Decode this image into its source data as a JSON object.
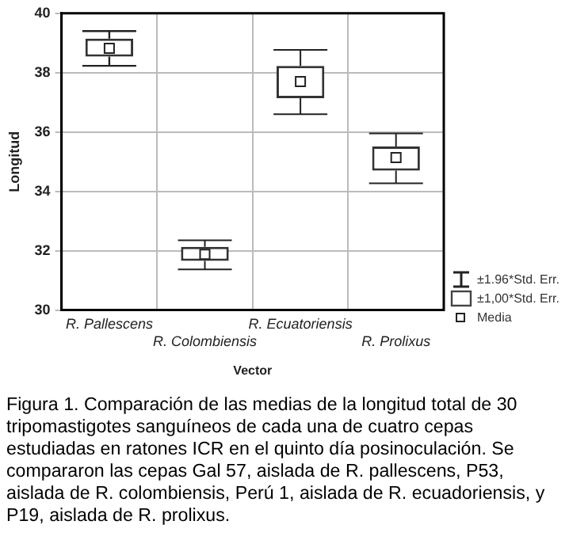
{
  "chart_data": {
    "type": "box",
    "xlabel": "Vector",
    "ylabel": "Longitud",
    "categories": [
      "R. Pallescens",
      "R. Colombiensis",
      "R. Ecuatoriensis",
      "R. Prolixus"
    ],
    "boxes": [
      {
        "low": 38.23,
        "q1": 38.54,
        "median": 38.82,
        "q3": 39.15,
        "high": 39.4
      },
      {
        "low": 31.37,
        "q1": 31.66,
        "median": 31.88,
        "q3": 32.13,
        "high": 32.35
      },
      {
        "low": 36.6,
        "q1": 37.14,
        "median": 37.7,
        "q3": 38.23,
        "high": 38.77
      },
      {
        "low": 34.27,
        "q1": 34.7,
        "median": 35.14,
        "q3": 35.51,
        "high": 35.95
      }
    ],
    "ylim": [
      30,
      40
    ],
    "yticks": [
      30,
      32,
      34,
      36,
      38,
      40
    ],
    "grid": true,
    "marker": "square",
    "annotations": [
      "±1.96*Std. Err.",
      "±1,00*Std. Err.",
      "Media",
      "Figura 1. Comparación de las medias de la longitud total de 30 tripomastigotes sanguíneos de cada una de cuatro cepas estudiadas en ratones ICR en el quinto día posinoculación. Se compararon las cepas Gal 57, aislada de R. pallescens, P53, aislada de R. colombiensis, Perú 1, aislada de R. ecuadoriensis, y P19, aislada de R. prolixus."
    ]
  }
}
